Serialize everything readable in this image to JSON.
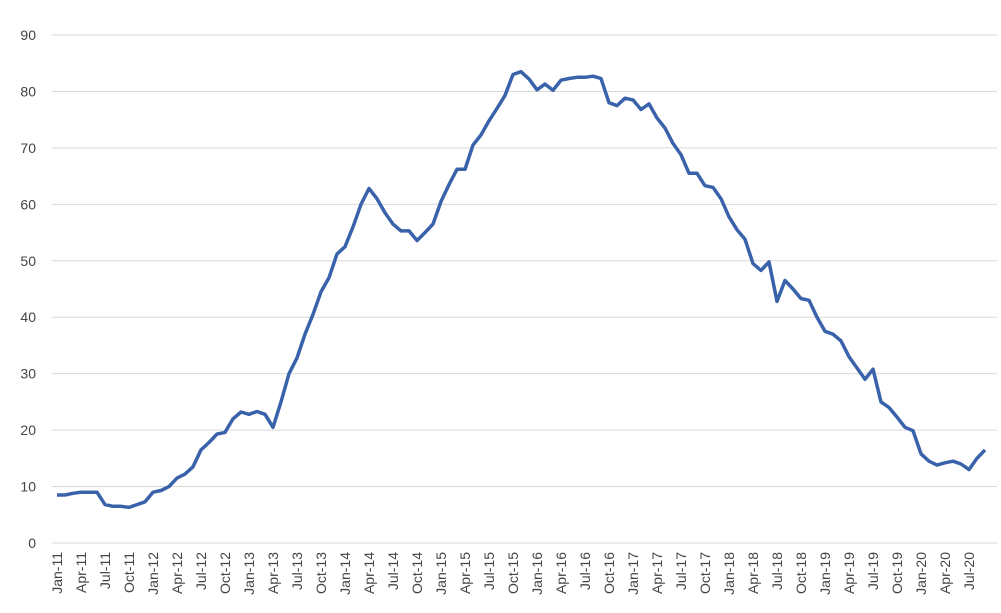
{
  "chart_data": {
    "type": "line",
    "categories": [
      "Jan-11",
      null,
      null,
      "Apr-11",
      null,
      null,
      "Jul-11",
      null,
      null,
      "Oct-11",
      null,
      null,
      "Jan-12",
      null,
      null,
      "Apr-12",
      null,
      null,
      "Jul-12",
      null,
      null,
      "Oct-12",
      null,
      null,
      "Jan-13",
      null,
      null,
      "Apr-13",
      null,
      null,
      "Jul-13",
      null,
      null,
      "Oct-13",
      null,
      null,
      "Jan-14",
      null,
      null,
      "Apr-14",
      null,
      null,
      "Jul-14",
      null,
      null,
      "Oct-14",
      null,
      null,
      "Jan-15",
      null,
      null,
      "Apr-15",
      null,
      null,
      "Jul-15",
      null,
      null,
      "Oct-15",
      null,
      null,
      "Jan-16",
      null,
      null,
      "Apr-16",
      null,
      null,
      "Jul-16",
      null,
      null,
      "Oct-16",
      null,
      null,
      "Jan-17",
      null,
      null,
      "Apr-17",
      null,
      null,
      "Jul-17",
      null,
      null,
      "Oct-17",
      null,
      null,
      "Jan-18",
      null,
      null,
      "Apr-18",
      null,
      null,
      "Jul-18",
      null,
      null,
      "Oct-18",
      null,
      null,
      "Jan-19",
      null,
      null,
      "Apr-19",
      null,
      null,
      "Jul-19",
      null,
      null,
      "Oct-19",
      null,
      null,
      "Jan-20",
      null,
      null,
      "Apr-20",
      null,
      null,
      "Jul-20",
      null,
      null
    ],
    "series": [
      {
        "color": "#3a62ab",
        "values": [
          8.5,
          8.5,
          8.8,
          9.0,
          9.0,
          9.0,
          6.8,
          6.5,
          6.5,
          6.3,
          6.8,
          7.3,
          9.0,
          9.3,
          10.0,
          11.5,
          12.2,
          13.5,
          16.5,
          17.8,
          19.3,
          19.6,
          22.0,
          23.2,
          22.8,
          23.3,
          22.8,
          20.5,
          25.0,
          30.0,
          32.8,
          37.0,
          40.5,
          44.5,
          47.0,
          51.2,
          52.5,
          56.0,
          60.0,
          62.8,
          61.0,
          58.5,
          56.5,
          55.3,
          55.3,
          53.6,
          55.0,
          56.5,
          60.5,
          63.5,
          66.2,
          66.2,
          70.5,
          72.3,
          74.8,
          77.0,
          79.3,
          83.0,
          83.5,
          82.2,
          80.3,
          81.3,
          80.2,
          82.0,
          82.3,
          82.5,
          82.5,
          82.7,
          82.3,
          78.0,
          77.5,
          78.8,
          78.5,
          76.8,
          77.8,
          75.3,
          73.5,
          70.8,
          68.8,
          65.5,
          65.5,
          63.3,
          63.0,
          61.0,
          57.8,
          55.5,
          53.8,
          49.5,
          48.3,
          49.8,
          42.8,
          46.5,
          45.0,
          43.3,
          43.0,
          40.0,
          37.5,
          37.0,
          35.8,
          33.0,
          31.0,
          29.0,
          30.8,
          25.0,
          24.0,
          22.3,
          20.5,
          19.9,
          15.8,
          14.5,
          13.8,
          14.2,
          14.5,
          14.0,
          13.0,
          15.0,
          16.5
        ]
      }
    ],
    "ylim": [
      0,
      90
    ],
    "yticks": [
      0,
      10,
      20,
      30,
      40,
      50,
      60,
      70,
      80,
      90
    ],
    "grid": true
  }
}
